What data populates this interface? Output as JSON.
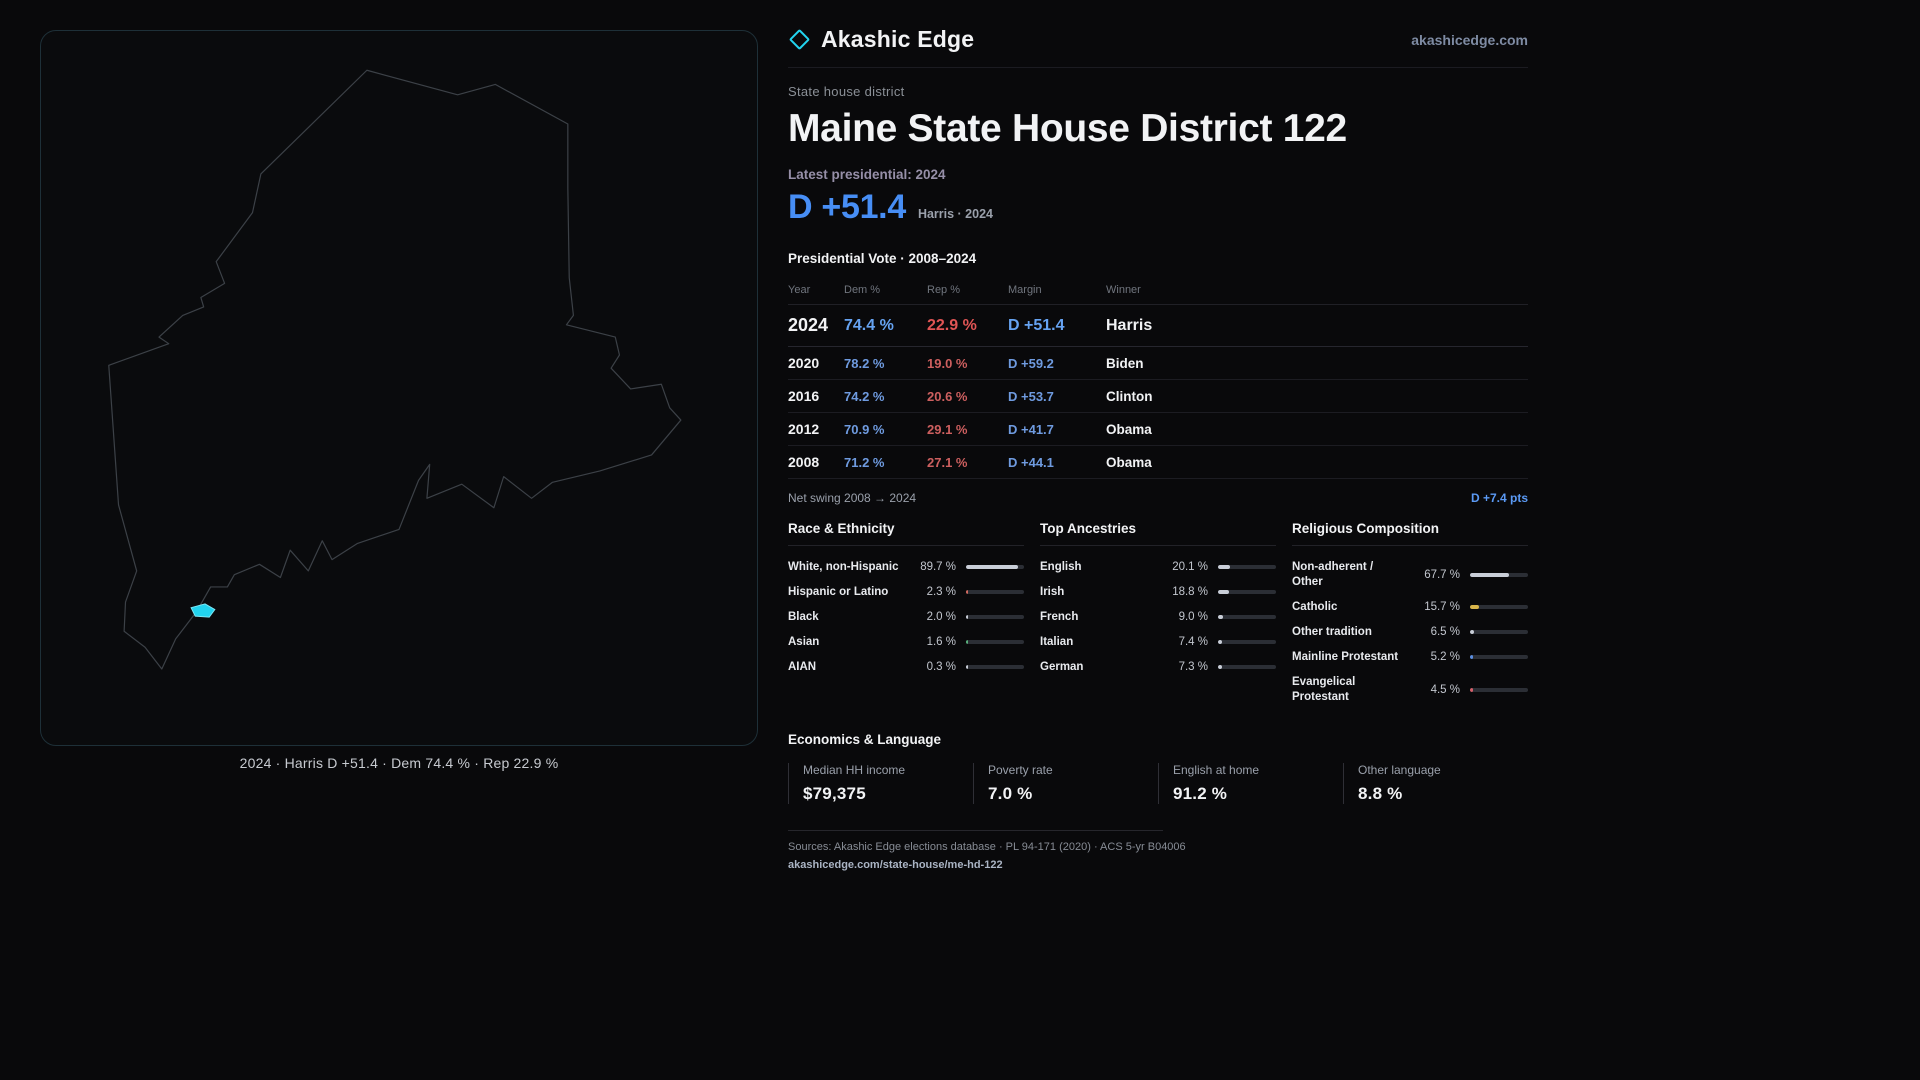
{
  "colors": {
    "accent": "#22d3ee",
    "dem_blue": "#6f9be0",
    "dem_blue_bright": "#478ef5",
    "rep_red": "#cd5f5f",
    "map_outline": "#3c4147"
  },
  "brand": {
    "name": "Akashic Edge",
    "domain": "akashicedge.com"
  },
  "header": {
    "kicker": "State house district",
    "title": "Maine State House District 122",
    "latest_label": "Latest presidential: 2024",
    "margin_big": "D +51.4",
    "margin_sub": "Harris · 2024"
  },
  "map": {
    "caption": "2024 · Harris D +51.4 · Dem 74.4 % · Rep 22.9 %"
  },
  "vote_table": {
    "title": "Presidential Vote · 2008–2024",
    "columns": [
      "Year",
      "Dem %",
      "Rep %",
      "Margin",
      "Winner"
    ],
    "rows": [
      {
        "year": "2024",
        "dem": "74.4 %",
        "rep": "22.9 %",
        "margin": "D +51.4",
        "winner": "Harris"
      },
      {
        "year": "2020",
        "dem": "78.2 %",
        "rep": "19.0 %",
        "margin": "D +59.2",
        "winner": "Biden"
      },
      {
        "year": "2016",
        "dem": "74.2 %",
        "rep": "20.6 %",
        "margin": "D +53.7",
        "winner": "Clinton"
      },
      {
        "year": "2012",
        "dem": "70.9 %",
        "rep": "29.1 %",
        "margin": "D +41.7",
        "winner": "Obama"
      },
      {
        "year": "2008",
        "dem": "71.2 %",
        "rep": "27.1 %",
        "margin": "D +44.1",
        "winner": "Obama"
      }
    ]
  },
  "net_swing": {
    "label": "Net swing 2008 → 2024",
    "value": "D +7.4 pts"
  },
  "demographics": {
    "columns": [
      {
        "title": "Race & Ethnicity",
        "rows": [
          {
            "label": "White, non-Hispanic",
            "value": "89.7 %",
            "pct": 89.7,
            "color": "#c9ced8"
          },
          {
            "label": "Hispanic or Latino",
            "value": "2.3 %",
            "pct": 2.3,
            "color": "#d4695f"
          },
          {
            "label": "Black",
            "value": "2.0 %",
            "pct": 2.0,
            "color": "#c9ced8"
          },
          {
            "label": "Asian",
            "value": "1.6 %",
            "pct": 1.6,
            "color": "#58b07c"
          },
          {
            "label": "AIAN",
            "value": "0.3 %",
            "pct": 0.3,
            "color": "#c9ced8"
          }
        ]
      },
      {
        "title": "Top Ancestries",
        "rows": [
          {
            "label": "English",
            "value": "20.1 %",
            "pct": 20.1,
            "color": "#c9ced8"
          },
          {
            "label": "Irish",
            "value": "18.8 %",
            "pct": 18.8,
            "color": "#c9ced8"
          },
          {
            "label": "French",
            "value": "9.0 %",
            "pct": 9.0,
            "color": "#c9ced8"
          },
          {
            "label": "Italian",
            "value": "7.4 %",
            "pct": 7.4,
            "color": "#c9ced8"
          },
          {
            "label": "German",
            "value": "7.3 %",
            "pct": 7.3,
            "color": "#c9ced8"
          }
        ]
      },
      {
        "title": "Religious Composition",
        "rows": [
          {
            "label": "Non-adherent / Other",
            "value": "67.7 %",
            "pct": 67.7,
            "color": "#c9ced8"
          },
          {
            "label": "Catholic",
            "value": "15.7 %",
            "pct": 15.7,
            "color": "#d9b54a"
          },
          {
            "label": "Other tradition",
            "value": "6.5 %",
            "pct": 6.5,
            "color": "#c9ced8"
          },
          {
            "label": "Mainline Protestant",
            "value": "5.2 %",
            "pct": 5.2,
            "color": "#5b8ee0"
          },
          {
            "label": "Evangelical Protestant",
            "value": "4.5 %",
            "pct": 4.5,
            "color": "#d4606a"
          }
        ]
      }
    ]
  },
  "economics": {
    "title": "Economics & Language",
    "stats": [
      {
        "label": "Median HH income",
        "value": "$79,375"
      },
      {
        "label": "Poverty rate",
        "value": "7.0 %"
      },
      {
        "label": "English at home",
        "value": "91.2 %"
      },
      {
        "label": "Other language",
        "value": "8.8 %"
      }
    ]
  },
  "footer": {
    "sources": "Sources: Akashic Edge elections database · PL 94-171 (2020) · ACS 5-yr B04006",
    "permalink": "akashicedge.com/state-house/me-hd-122"
  }
}
